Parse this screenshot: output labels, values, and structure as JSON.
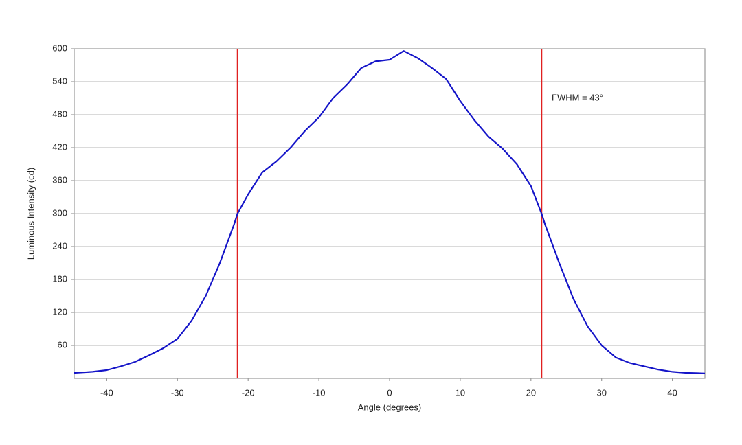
{
  "chart_data": {
    "type": "line",
    "xlabel": "Angle (degrees)",
    "ylabel": "Luminous Intensity (cd)",
    "annotation": "FWHM = 43°",
    "x": [
      -44.6,
      -42,
      -40,
      -38,
      -36,
      -34,
      -32,
      -30,
      -28,
      -26,
      -24,
      -22,
      -21.5,
      -20,
      -18,
      -16,
      -14,
      -12,
      -10,
      -8,
      -6,
      -4,
      -2,
      0,
      2,
      4,
      6,
      8,
      10,
      12,
      14,
      16,
      18,
      20,
      21.5,
      22,
      24,
      26,
      28,
      30,
      32,
      34,
      36,
      38,
      40,
      42,
      44.6
    ],
    "series": [
      {
        "color": "#1414c8",
        "values": [
          10,
          12,
          15,
          22,
          30,
          42,
          55,
          72,
          105,
          150,
          210,
          280,
          300,
          335,
          375,
          395,
          420,
          450,
          475,
          510,
          535,
          565,
          577,
          580,
          596,
          583,
          565,
          545,
          505,
          470,
          440,
          418,
          390,
          350,
          300,
          280,
          210,
          145,
          95,
          60,
          38,
          28,
          22,
          16,
          12,
          10,
          9
        ]
      }
    ],
    "vlines": [
      {
        "x": -21.5,
        "color": "#e02020"
      },
      {
        "x": 21.5,
        "color": "#e02020"
      }
    ],
    "xlim": [
      -44.6,
      44.6
    ],
    "ylim": [
      0,
      600
    ],
    "xticks": [
      -40,
      -30,
      -20,
      -10,
      0,
      10,
      20,
      30,
      40
    ],
    "yticks": [
      60,
      120,
      180,
      240,
      300,
      360,
      420,
      480,
      540,
      600
    ],
    "grid": true
  }
}
